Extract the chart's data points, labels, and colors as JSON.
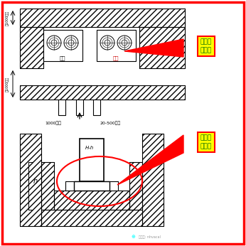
{
  "bg_color": "#ffffff",
  "border_color": "#ff0000",
  "label1": "预留足\n够空间",
  "label2": "加装导\n风通道",
  "dim_text1": "1000以上",
  "dim_text2": "20-500之间",
  "left_dim_top": "上1000以上",
  "left_dim_bot": "下1000以上",
  "unit_text": "微信号: nhvacal",
  "fan_label1": "正面",
  "fan_label2": "正面",
  "fig_width": 3.46,
  "fig_height": 3.46,
  "dpi": 100
}
